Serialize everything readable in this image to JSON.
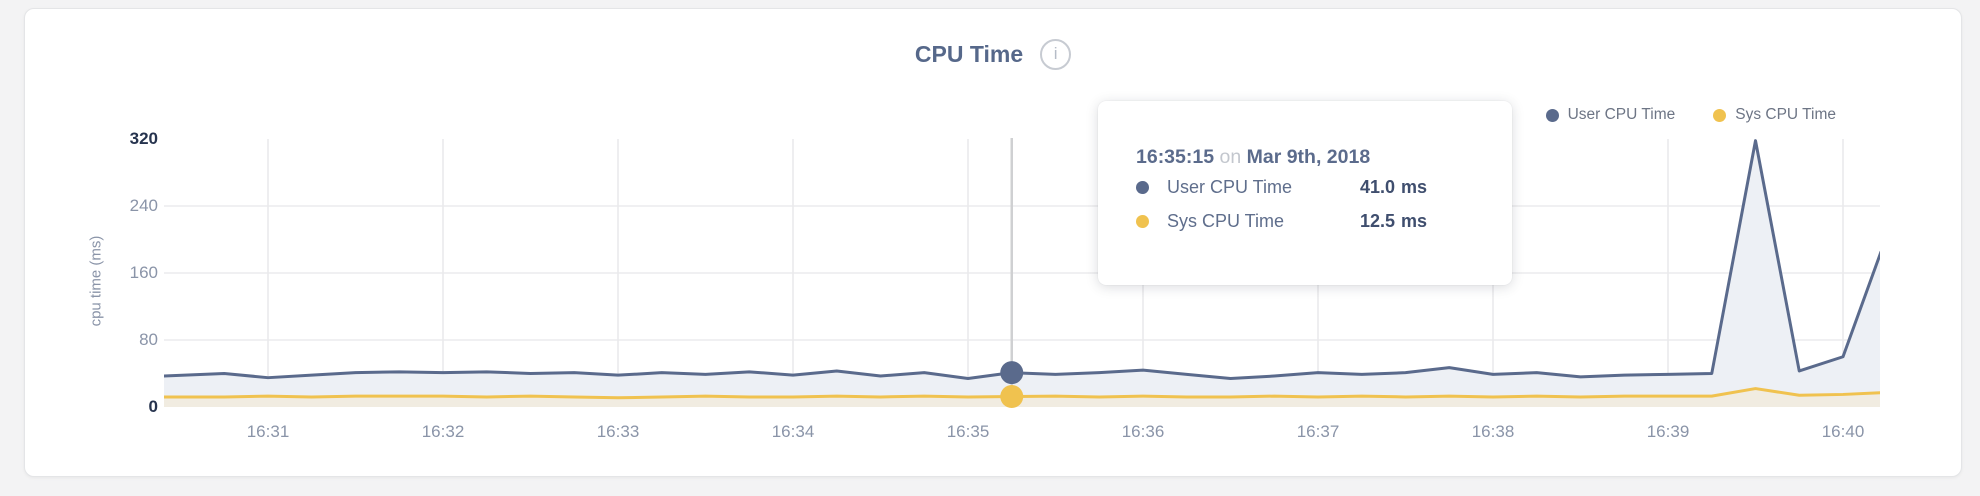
{
  "header": {
    "title": "CPU Time",
    "info_glyph": "i"
  },
  "legend": {
    "items": [
      {
        "label": "User CPU Time",
        "color": "#5a6a8c"
      },
      {
        "label": "Sys CPU Time",
        "color": "#f0c24f"
      }
    ]
  },
  "tooltip": {
    "time": "16:35:15",
    "conjunction": "on",
    "date": "Mar 9th, 2018",
    "rows": [
      {
        "label": "User CPU Time",
        "value": "41.0",
        "unit": "ms"
      },
      {
        "label": "Sys CPU Time",
        "value": "12.5",
        "unit": "ms"
      }
    ]
  },
  "chart_data": {
    "type": "line",
    "title": "CPU Time",
    "xlabel": "",
    "ylabel": "cpu time (ms)",
    "ylim": [
      0,
      320
    ],
    "y_ticks": [
      320,
      240,
      160,
      80,
      0
    ],
    "x_ticks": [
      "16:31",
      "16:32",
      "16:33",
      "16:34",
      "16:35",
      "16:36",
      "16:37",
      "16:38",
      "16:39",
      "16:40"
    ],
    "x_range": [
      "16:30:24",
      "16:40:13"
    ],
    "grid": true,
    "legend_position": "top-right",
    "hover_time": "16:35:15",
    "times": [
      "16:30:24",
      "16:30:45",
      "16:31:00",
      "16:31:15",
      "16:31:30",
      "16:31:45",
      "16:32:00",
      "16:32:15",
      "16:32:30",
      "16:32:45",
      "16:33:00",
      "16:33:15",
      "16:33:30",
      "16:33:45",
      "16:34:00",
      "16:34:15",
      "16:34:30",
      "16:34:45",
      "16:35:00",
      "16:35:15",
      "16:35:30",
      "16:35:45",
      "16:36:00",
      "16:36:15",
      "16:36:30",
      "16:36:45",
      "16:37:00",
      "16:37:15",
      "16:37:30",
      "16:37:45",
      "16:38:00",
      "16:38:15",
      "16:38:30",
      "16:38:45",
      "16:39:00",
      "16:39:15",
      "16:39:30",
      "16:39:45",
      "16:40:00",
      "16:40:13"
    ],
    "series": [
      {
        "name": "User CPU Time",
        "unit": "ms",
        "color": "#5a6a8c",
        "fill": "#edf0f5",
        "values": [
          37,
          40,
          35,
          38,
          41,
          42,
          41,
          42,
          40,
          41,
          38,
          41,
          39,
          42,
          38,
          43,
          37,
          41,
          34,
          41,
          39,
          41,
          44,
          39,
          34,
          37,
          41,
          39,
          41,
          47,
          39,
          41,
          36,
          38,
          39,
          40,
          318,
          43,
          60,
          185
        ]
      },
      {
        "name": "Sys CPU Time",
        "unit": "ms",
        "color": "#f0c24f",
        "fill": "#f1ece1",
        "values": [
          12,
          12,
          13,
          12,
          13,
          13,
          13,
          12,
          13,
          12,
          11,
          12,
          13,
          12,
          12,
          13,
          12,
          13,
          12,
          12.5,
          13,
          12,
          13,
          12,
          12,
          13,
          12,
          13,
          12,
          13,
          12,
          13,
          12,
          13,
          13,
          13,
          22,
          14,
          15,
          17
        ]
      }
    ],
    "grid_color": "#ececee",
    "crosshair_color": "#cfd0d2"
  }
}
